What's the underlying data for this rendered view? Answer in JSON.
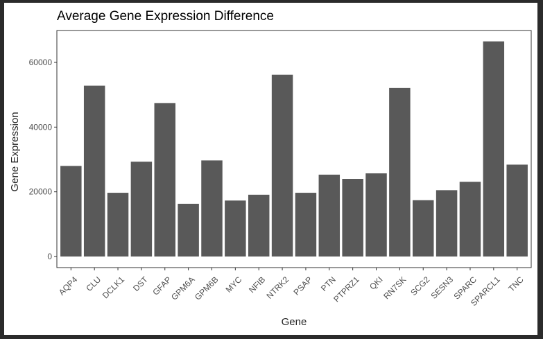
{
  "chart_data": {
    "type": "bar",
    "title": "Average Gene Expression Difference",
    "xlabel": "Gene",
    "ylabel": "Gene Expression",
    "categories": [
      "AQP4",
      "CLU",
      "DCLK1",
      "DST",
      "GFAP",
      "GPM6A",
      "GPM6B",
      "MYC",
      "NFIB",
      "NTRK2",
      "PSAP",
      "PTN",
      "PTPRZ1",
      "QKI",
      "RN7SK",
      "SCG2",
      "SESN3",
      "SPARC",
      "SPARCL1",
      "TNC"
    ],
    "values": [
      28000,
      52800,
      19700,
      29300,
      47400,
      16300,
      29700,
      17300,
      19100,
      56200,
      19700,
      25300,
      24000,
      25700,
      52100,
      17400,
      20500,
      23100,
      66500,
      28400
    ],
    "ylim": [
      0,
      70000
    ],
    "yticks": [
      0,
      20000,
      40000,
      60000
    ],
    "grid": false,
    "bar_color": "#595959"
  }
}
